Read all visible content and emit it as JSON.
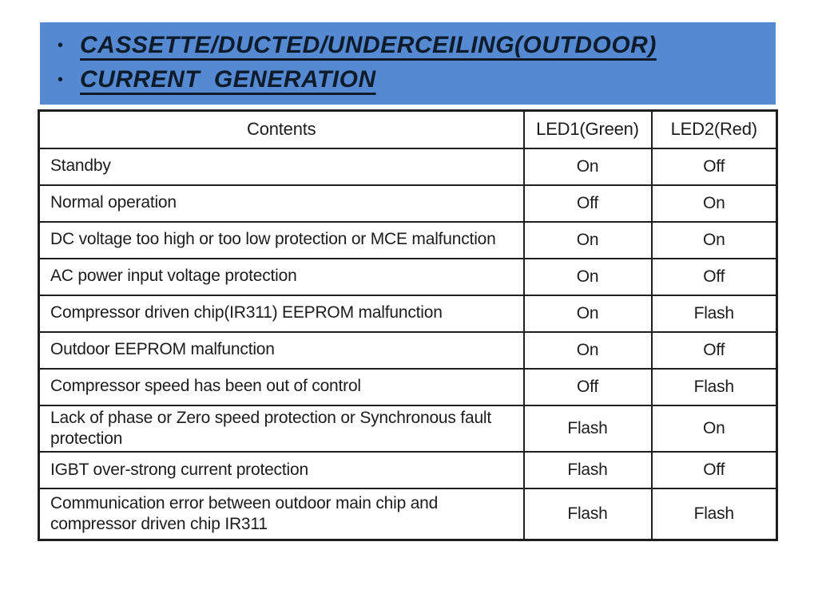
{
  "slide": {
    "banner_color": "#5589D2",
    "title_text_color": "#0e1b2a",
    "bullet_glyph": "•",
    "bullets": [
      {
        "label": "CASSETTE/DUCTED/UNDERCEILING(OUTDOOR)"
      },
      {
        "label": "CURRENT  GENERATION"
      }
    ]
  },
  "table": {
    "headers": [
      "Contents",
      "LED1(Green)",
      "LED2(Red)"
    ],
    "rows": [
      {
        "contents": "Standby",
        "led1": "On",
        "led2": "Off"
      },
      {
        "contents": "Normal operation",
        "led1": "Off",
        "led2": "On"
      },
      {
        "contents": "DC voltage too high or too low protection or MCE malfunction",
        "led1": "On",
        "led2": "On"
      },
      {
        "contents": "AC power input voltage protection",
        "led1": "On",
        "led2": "Off"
      },
      {
        "contents": "Compressor driven chip(IR311) EEPROM malfunction",
        "led1": "On",
        "led2": "Flash"
      },
      {
        "contents": "Outdoor EEPROM malfunction",
        "led1": "On",
        "led2": "Off"
      },
      {
        "contents": "Compressor speed has been out of control",
        "led1": "Off",
        "led2": "Flash"
      },
      {
        "contents": "Lack of phase or Zero speed protection or Synchronous fault protection",
        "led1": "Flash",
        "led2": "On"
      },
      {
        "contents": "IGBT over-strong current protection",
        "led1": "Flash",
        "led2": "Off"
      },
      {
        "contents": "Communication error between outdoor main chip and compressor driven chip IR311",
        "led1": "Flash",
        "led2": "Flash"
      }
    ]
  }
}
